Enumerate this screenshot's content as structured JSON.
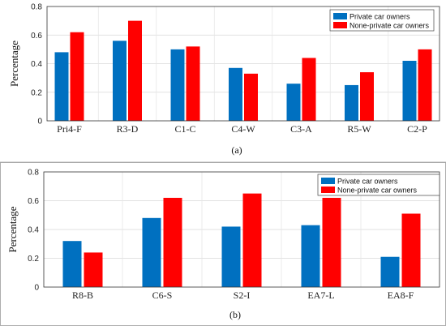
{
  "chart_data": [
    {
      "type": "bar",
      "panel_label": "(a)",
      "ylabel": "Percentage",
      "ylim": [
        0,
        0.8
      ],
      "yticks": [
        "0",
        "0.2",
        "0.4",
        "0.6",
        "0.8"
      ],
      "grid": true,
      "legend_position": "top-right",
      "categories": [
        "Pri4-F",
        "R3-D",
        "C1-C",
        "C4-W",
        "C3-A",
        "R5-W",
        "C2-P"
      ],
      "series": [
        {
          "name": "Private car owners",
          "color": "#0070c0",
          "values": [
            0.48,
            0.56,
            0.5,
            0.37,
            0.26,
            0.25,
            0.42
          ]
        },
        {
          "name": "None-private car owners",
          "color": "#ff0000",
          "values": [
            0.62,
            0.7,
            0.52,
            0.33,
            0.44,
            0.34,
            0.5
          ]
        }
      ]
    },
    {
      "type": "bar",
      "panel_label": "(b)",
      "ylabel": "Percentage",
      "ylim": [
        0,
        0.8
      ],
      "yticks": [
        "0",
        "0.2",
        "0.4",
        "0.6",
        "0.8"
      ],
      "grid": true,
      "legend_position": "top-right",
      "categories": [
        "R8-B",
        "C6-S",
        "S2-I",
        "EA7-L",
        "EA8-F"
      ],
      "series": [
        {
          "name": "Private car owners",
          "color": "#0070c0",
          "values": [
            0.32,
            0.48,
            0.42,
            0.43,
            0.21
          ]
        },
        {
          "name": "None-private car owners",
          "color": "#ff0000",
          "values": [
            0.24,
            0.62,
            0.65,
            0.62,
            0.51
          ]
        }
      ]
    }
  ]
}
